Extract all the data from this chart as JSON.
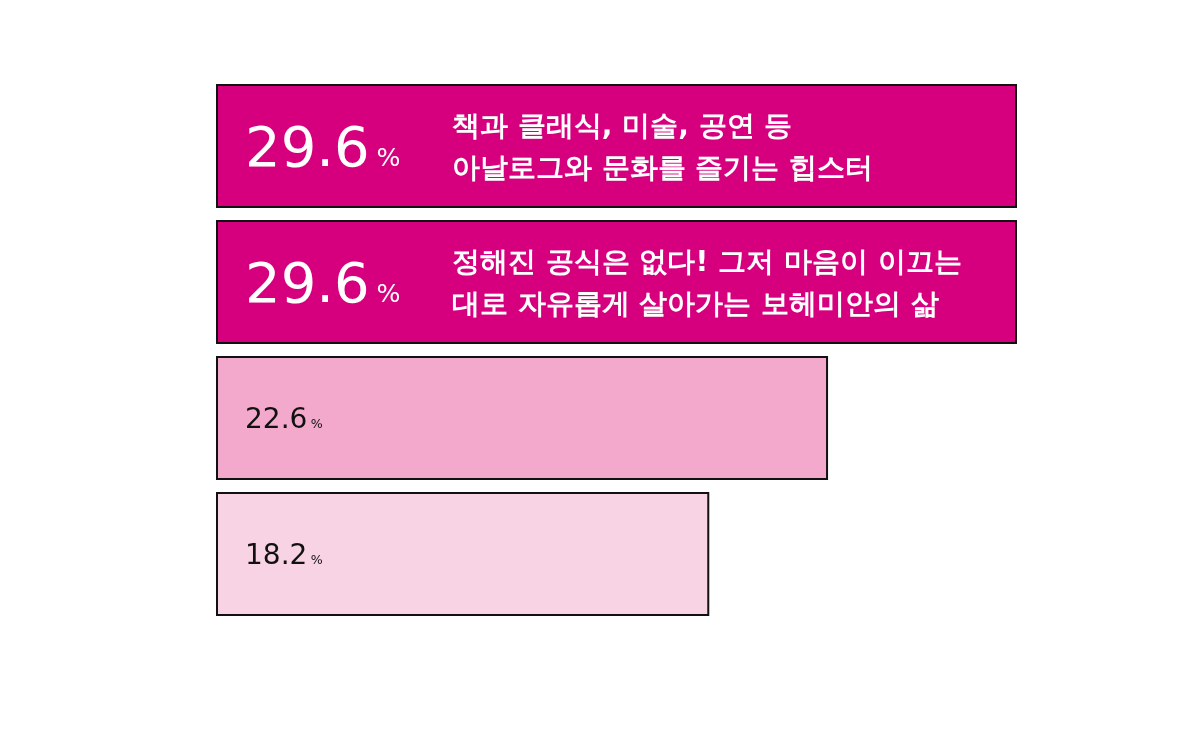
{
  "chart_data": {
    "type": "bar",
    "orientation": "horizontal",
    "tick_labels": false,
    "categories": [
      "책과 클래식, 미술, 공연 등\n아날로그와 문화를 즐기는 힙스터",
      "정해진 공식은 없다! 그저 마음이 이끄는\n대로 자유롭게 살아가는 보헤미안의 삶",
      null,
      null
    ],
    "values": [
      29.6,
      29.6,
      22.6,
      18.2
    ],
    "value_labels": [
      "29.6%",
      "29.6%",
      "22.6%",
      "18.2%"
    ],
    "colors": [
      "#d6007f",
      "#d6007f",
      "#f2a9cc",
      "#f8d3e3"
    ]
  }
}
